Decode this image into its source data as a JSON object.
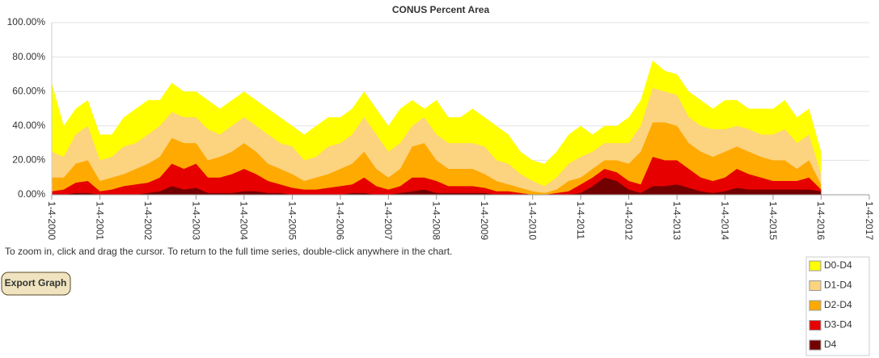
{
  "chart_data": {
    "type": "area",
    "title": "CONUS Percent Area",
    "x": [
      "2000-01-04",
      "2000-04-04",
      "2000-07-04",
      "2000-10-04",
      "2001-01-04",
      "2001-04-04",
      "2001-07-04",
      "2001-10-04",
      "2002-01-04",
      "2002-04-04",
      "2002-07-04",
      "2002-10-04",
      "2003-01-04",
      "2003-04-04",
      "2003-07-04",
      "2003-10-04",
      "2004-01-04",
      "2004-04-04",
      "2004-07-04",
      "2004-10-04",
      "2005-01-04",
      "2005-04-04",
      "2005-07-04",
      "2005-10-04",
      "2006-01-04",
      "2006-04-04",
      "2006-07-04",
      "2006-10-04",
      "2007-01-04",
      "2007-04-04",
      "2007-07-04",
      "2007-10-04",
      "2008-01-04",
      "2008-04-04",
      "2008-07-04",
      "2008-10-04",
      "2009-01-04",
      "2009-04-04",
      "2009-07-04",
      "2009-10-04",
      "2010-01-04",
      "2010-04-04",
      "2010-07-04",
      "2010-10-04",
      "2011-01-04",
      "2011-04-04",
      "2011-07-04",
      "2011-10-04",
      "2012-01-04",
      "2012-04-04",
      "2012-07-04",
      "2012-10-04",
      "2013-01-04",
      "2013-04-04",
      "2013-07-04",
      "2013-10-04",
      "2014-01-04",
      "2014-04-04",
      "2014-07-04",
      "2014-10-04",
      "2015-01-04",
      "2015-04-04",
      "2015-07-04",
      "2015-10-04",
      "2016-01-04"
    ],
    "series": [
      {
        "name": "D0-D4",
        "color": "#ffff00",
        "values": [
          65,
          40,
          50,
          55,
          35,
          35,
          45,
          50,
          55,
          55,
          65,
          60,
          60,
          55,
          50,
          55,
          60,
          55,
          50,
          45,
          40,
          35,
          40,
          45,
          45,
          50,
          60,
          50,
          40,
          50,
          55,
          50,
          55,
          45,
          45,
          50,
          45,
          40,
          35,
          25,
          20,
          18,
          25,
          35,
          40,
          35,
          40,
          40,
          45,
          55,
          78,
          72,
          70,
          60,
          55,
          50,
          55,
          55,
          50,
          50,
          50,
          55,
          45,
          50,
          25
        ]
      },
      {
        "name": "D1-D4",
        "color": "#fcd37f",
        "values": [
          25,
          22,
          35,
          40,
          20,
          22,
          28,
          30,
          35,
          40,
          48,
          45,
          45,
          38,
          35,
          40,
          45,
          40,
          35,
          30,
          28,
          20,
          22,
          28,
          30,
          35,
          45,
          35,
          25,
          30,
          40,
          45,
          35,
          30,
          30,
          30,
          28,
          20,
          18,
          12,
          8,
          5,
          10,
          18,
          22,
          25,
          30,
          30,
          30,
          40,
          62,
          60,
          58,
          45,
          40,
          38,
          38,
          40,
          38,
          35,
          35,
          38,
          30,
          35,
          12
        ]
      },
      {
        "name": "D2-D4",
        "color": "#ffaa00",
        "values": [
          10,
          10,
          18,
          20,
          8,
          10,
          12,
          15,
          18,
          22,
          33,
          30,
          30,
          20,
          22,
          25,
          30,
          25,
          18,
          15,
          12,
          8,
          10,
          12,
          15,
          18,
          25,
          15,
          10,
          15,
          28,
          30,
          20,
          15,
          15,
          15,
          12,
          8,
          6,
          4,
          2,
          1,
          3,
          8,
          10,
          15,
          20,
          20,
          18,
          25,
          42,
          42,
          40,
          30,
          25,
          22,
          25,
          28,
          25,
          22,
          20,
          20,
          15,
          20,
          6
        ]
      },
      {
        "name": "D3-D4",
        "color": "#e60000",
        "values": [
          2,
          3,
          7,
          8,
          2,
          3,
          5,
          6,
          7,
          10,
          18,
          15,
          18,
          10,
          10,
          12,
          15,
          12,
          8,
          6,
          4,
          3,
          3,
          4,
          5,
          6,
          10,
          5,
          3,
          5,
          10,
          10,
          8,
          5,
          5,
          5,
          4,
          2,
          2,
          1,
          0,
          0,
          1,
          2,
          6,
          10,
          15,
          13,
          8,
          6,
          22,
          20,
          20,
          15,
          10,
          8,
          10,
          15,
          12,
          10,
          8,
          8,
          8,
          10,
          3
        ]
      },
      {
        "name": "D4",
        "color": "#730000",
        "values": [
          0,
          0,
          1,
          1,
          0,
          0,
          0,
          0,
          1,
          2,
          5,
          3,
          4,
          1,
          1,
          1,
          2,
          2,
          1,
          1,
          0,
          0,
          0,
          0,
          0,
          1,
          1,
          0,
          0,
          1,
          2,
          3,
          1,
          1,
          1,
          1,
          1,
          0,
          0,
          0,
          0,
          0,
          0,
          0,
          1,
          5,
          10,
          8,
          3,
          1,
          5,
          5,
          6,
          4,
          2,
          1,
          2,
          4,
          3,
          3,
          3,
          3,
          3,
          3,
          2
        ]
      }
    ],
    "xlim": [
      "2000-01-04",
      "2017-01-04"
    ],
    "xticks": [
      {
        "value": "2000-01-04",
        "label": "1-4-2000"
      },
      {
        "value": "2001-01-04",
        "label": "1-4-2001"
      },
      {
        "value": "2002-01-04",
        "label": "1-4-2002"
      },
      {
        "value": "2003-01-04",
        "label": "1-4-2003"
      },
      {
        "value": "2004-01-04",
        "label": "1-4-2004"
      },
      {
        "value": "2005-01-04",
        "label": "1-4-2005"
      },
      {
        "value": "2006-01-04",
        "label": "1-4-2006"
      },
      {
        "value": "2007-01-04",
        "label": "1-4-2007"
      },
      {
        "value": "2008-01-04",
        "label": "1-4-2008"
      },
      {
        "value": "2009-01-04",
        "label": "1-4-2009"
      },
      {
        "value": "2010-01-04",
        "label": "1-4-2010"
      },
      {
        "value": "2011-01-04",
        "label": "1-4-2011"
      },
      {
        "value": "2012-01-04",
        "label": "1-4-2012"
      },
      {
        "value": "2013-01-04",
        "label": "1-4-2013"
      },
      {
        "value": "2014-01-04",
        "label": "1-4-2014"
      },
      {
        "value": "2015-01-04",
        "label": "1-4-2015"
      },
      {
        "value": "2016-01-04",
        "label": "1-4-2016"
      },
      {
        "value": "2017-01-04",
        "label": "1-4-2017"
      }
    ],
    "ylim": [
      0,
      100
    ],
    "yticks": [
      {
        "value": 0,
        "label": "0.00%"
      },
      {
        "value": 20,
        "label": "20.00%"
      },
      {
        "value": 40,
        "label": "40.00%"
      },
      {
        "value": 60,
        "label": "60.00%"
      },
      {
        "value": 80,
        "label": "80.00%"
      },
      {
        "value": 100,
        "label": "100.00%"
      }
    ],
    "grid": true
  },
  "instructions": "To zoom in, click and drag the cursor. To return to the full time series, double-click anywhere in the chart.",
  "export_button": "Export Graph"
}
